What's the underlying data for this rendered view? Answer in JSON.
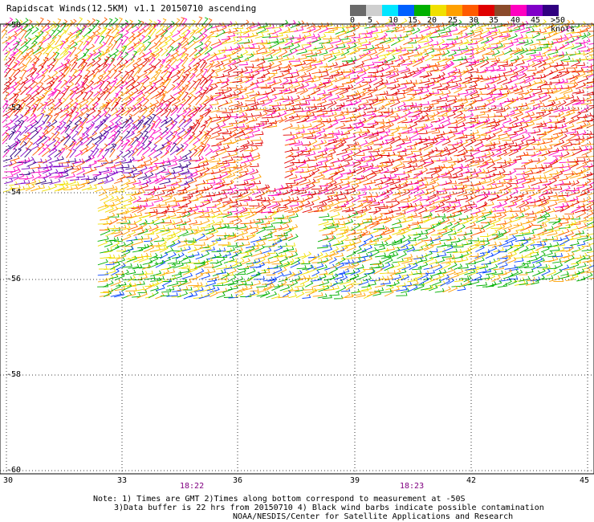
{
  "header": {
    "title": "Rapidscat Winds(12.5KM) v1.1 20150710 ascending"
  },
  "color_scale": {
    "ticks": [
      "0",
      "5",
      "10",
      "15",
      "20",
      "25",
      "30",
      "35",
      "40",
      "45",
      ">50 knots"
    ],
    "colors": [
      "#6a6a6a",
      "#cfcfcf",
      "#00e6ff",
      "#0060ff",
      "#00b000",
      "#f0e000",
      "#ffa000",
      "#ff5a00",
      "#e00000",
      "#8b4a2a",
      "#ff00c0",
      "#8000c8",
      "#300080"
    ]
  },
  "axes": {
    "lat_labels": [
      "-50",
      "-52",
      "-54",
      "-56",
      "-58",
      "-60"
    ],
    "lon_labels": [
      "30",
      "33",
      "36",
      "39",
      "42",
      "45"
    ],
    "time_labels": [
      "18:22",
      "18:23"
    ]
  },
  "notes": {
    "line1": "Note: 1) Times are GMT 2)Times along bottom correspond to measurement at -50S",
    "line2": "3)Data buffer is 22 hrs from 20150710 4) Black wind barbs indicate possible contamination",
    "line3": "NOAA/NESDIS/Center for Satellite Applications and Research"
  }
}
